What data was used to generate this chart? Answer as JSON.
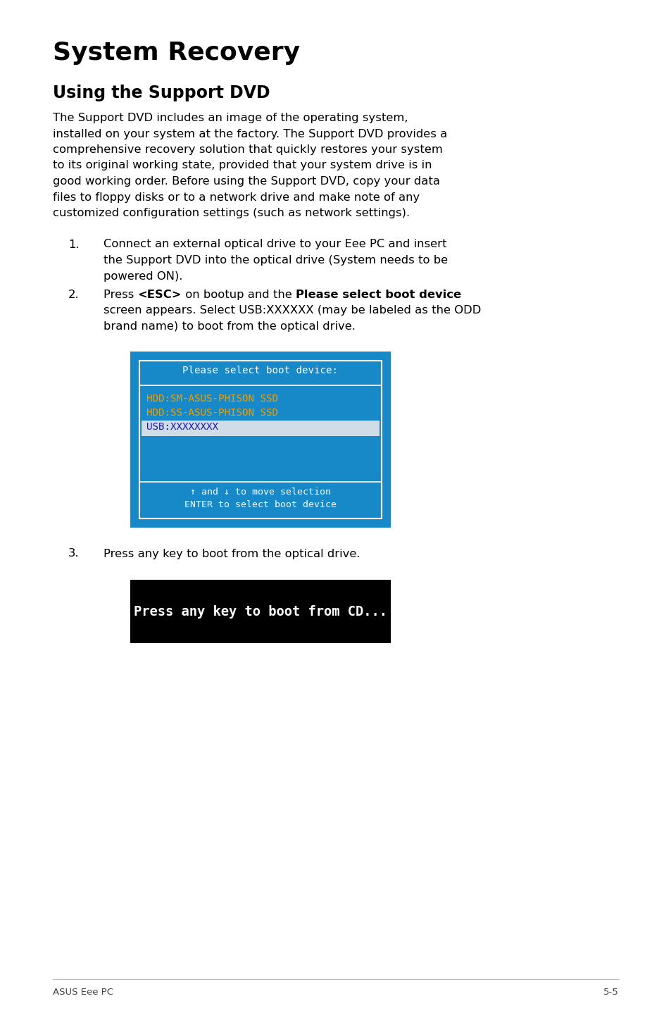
{
  "title": "System Recovery",
  "subtitle": "Using the Support DVD",
  "body_lines": [
    "The Support DVD includes an image of the operating system,",
    "installed on your system at the factory. The Support DVD provides a",
    "comprehensive recovery solution that quickly restores your system",
    "to its original working state, provided that your system drive is in",
    "good working order. Before using the Support DVD, copy your data",
    "files to floppy disks or to a network drive and make note of any",
    "customized configuration settings (such as network settings)."
  ],
  "item1_lines": [
    "Connect an external optical drive to your Eee PC and insert",
    "the Support DVD into the optical drive (System needs to be",
    "powered ON)."
  ],
  "item2_line1_pre": "Press ",
  "item2_line1_esc": "<ESC>",
  "item2_line1_mid": " on bootup and the ",
  "item2_line1_bold": "Please select boot device",
  "item2_line2": "screen appears. Select USB:XXXXXX (may be labeled as the ODD",
  "item2_line3": "brand name) to boot from the optical drive.",
  "item3": "Press any key to boot from the optical drive.",
  "blue_bg": "#1788c8",
  "white": "#ffffff",
  "hdd_color": "#f0a000",
  "usb_bg": "#d0dce8",
  "usb_text_color": "#1a1aaa",
  "blue_title": "Please select boot device:",
  "hdd1": "HDD:SM-ASUS-PHISON SSD",
  "hdd2": "HDD:SS-ASUS-PHISON SSD",
  "usb": "USB:XXXXXXXX",
  "footer1": "↑ and ↓ to move selection",
  "footer2": "ENTER to select boot device",
  "black_text": "Press any key to boot from CD...",
  "footer_left": "ASUS Eee PC",
  "footer_right": "5-5"
}
